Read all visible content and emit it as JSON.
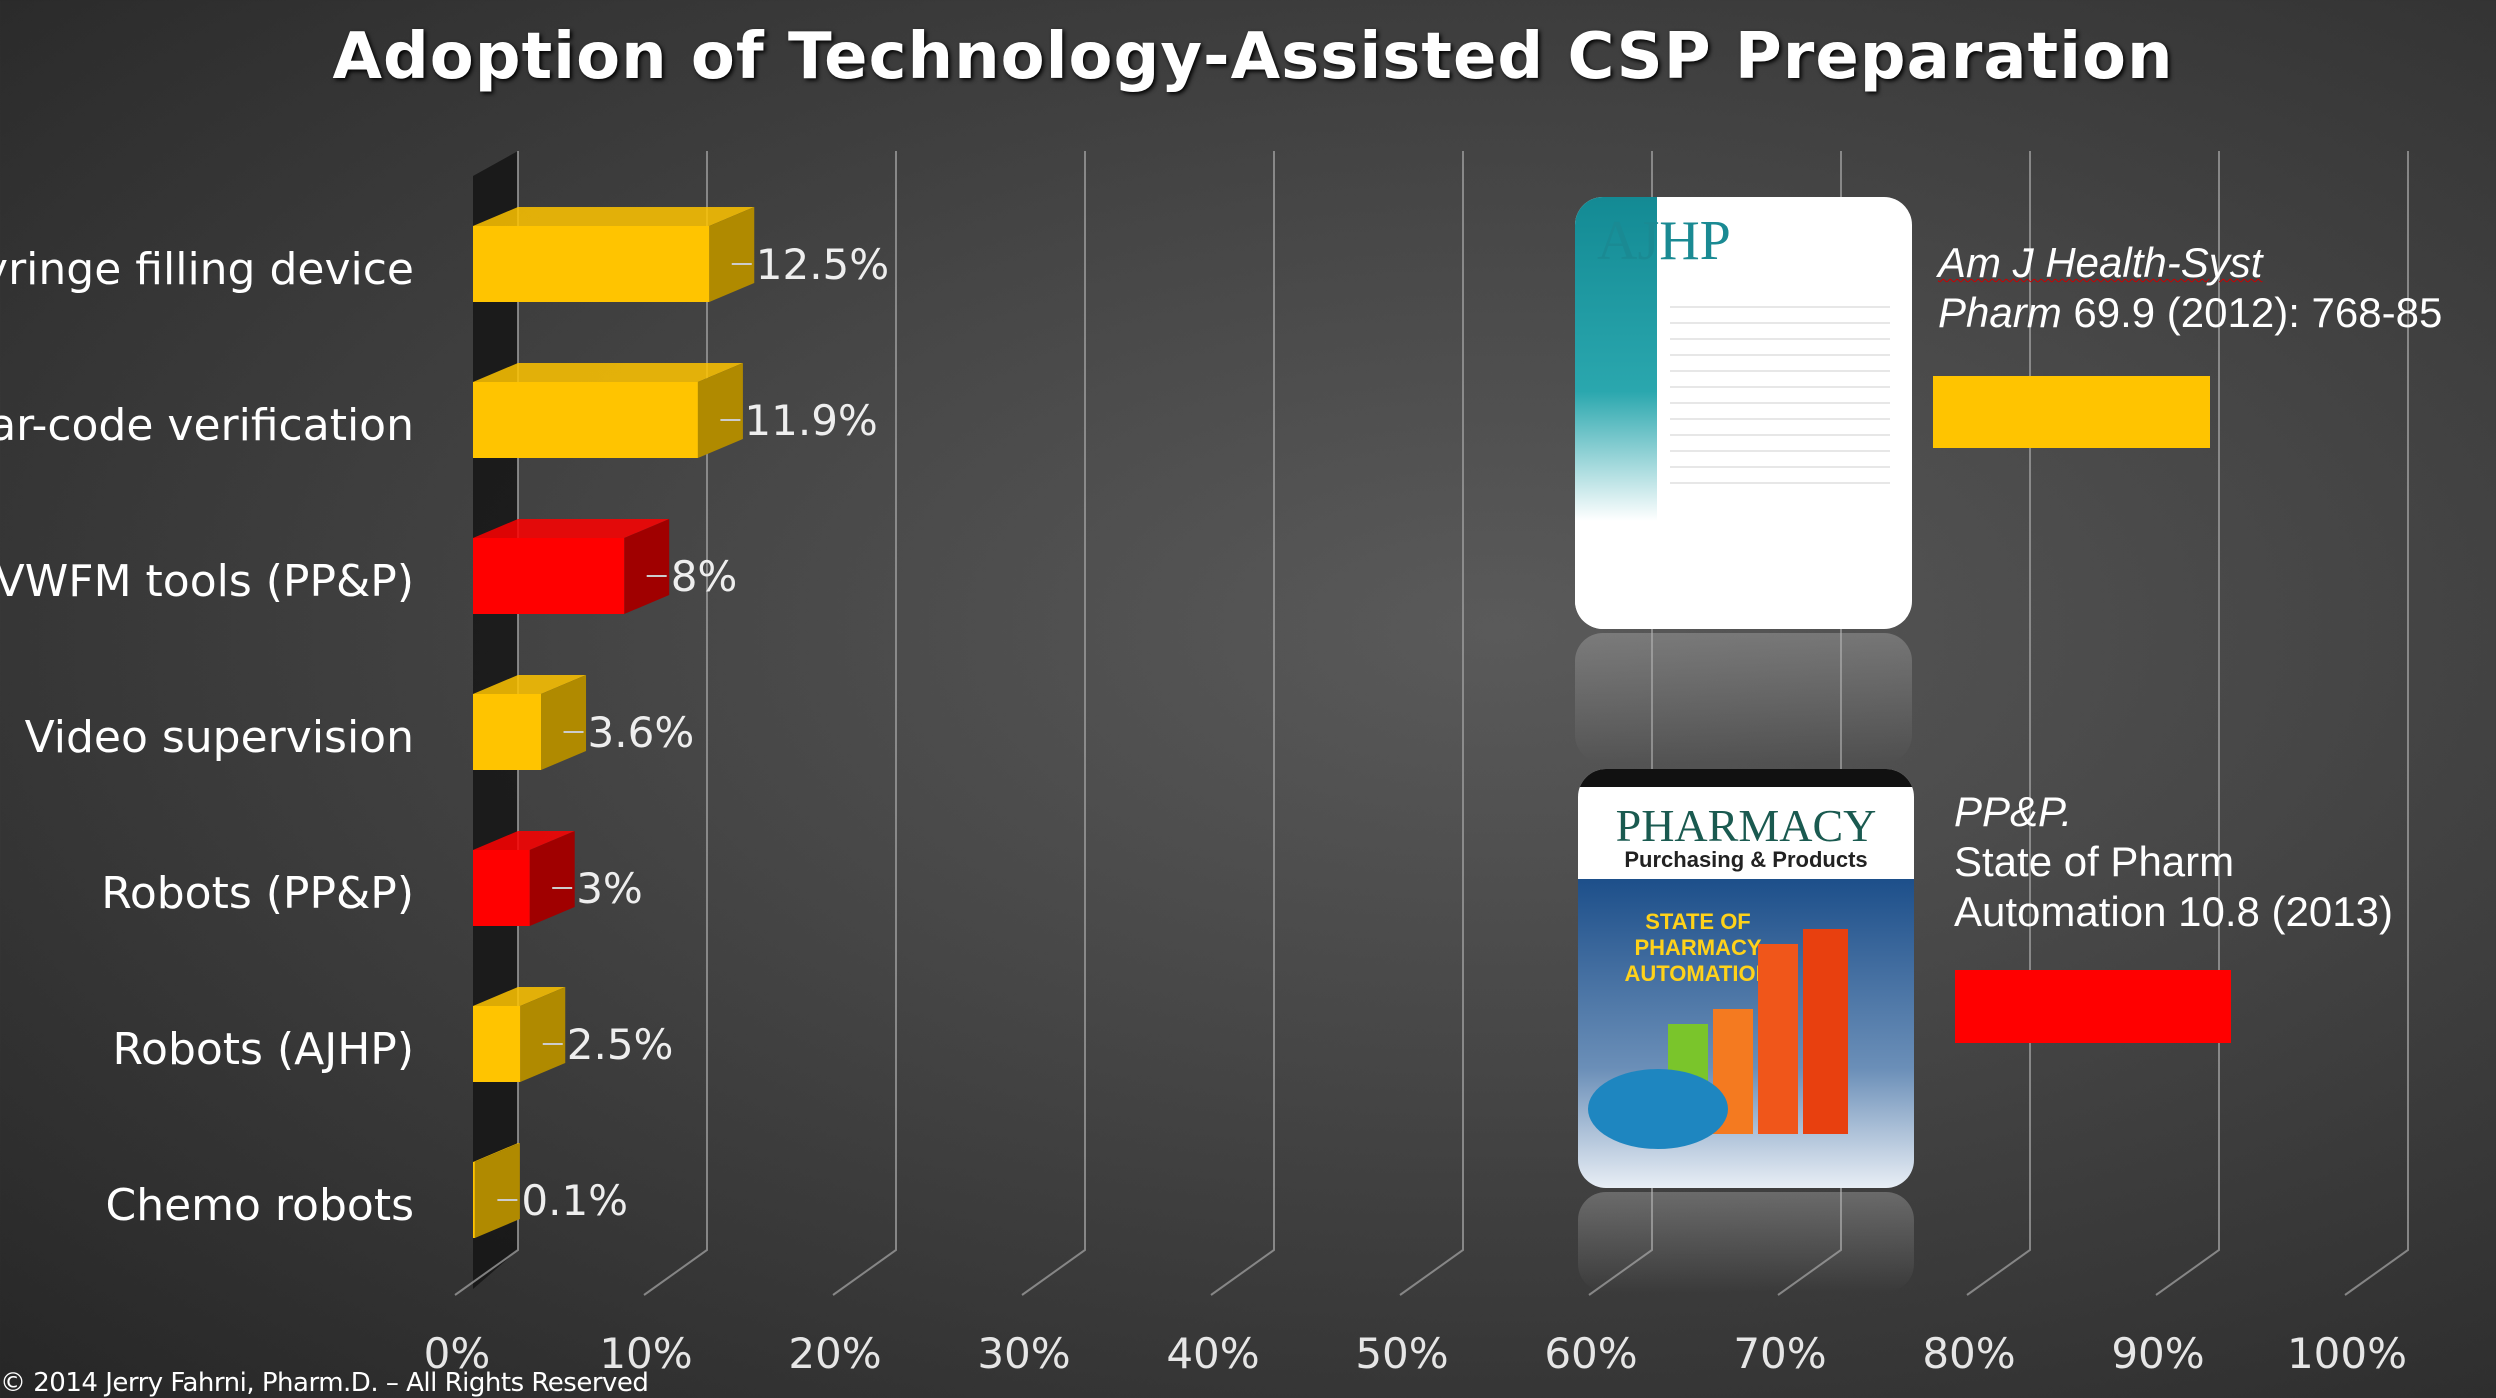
{
  "title": "Adoption of Technology-Assisted CSP Preparation",
  "chart_data": {
    "type": "bar",
    "orientation": "horizontal",
    "style": "3d",
    "title": "Adoption of Technology-Assisted CSP Preparation",
    "categories": [
      "Syringe filling device",
      "Bar-code verification",
      "IVWFM tools (PP&P)",
      "Video supervision",
      "Robots (PP&P)",
      "Robots (AJHP)",
      "Chemo robots"
    ],
    "values": [
      12.5,
      11.9,
      8,
      3.6,
      3,
      2.5,
      0.1
    ],
    "data_labels": [
      "12.5%",
      "11.9%",
      "8%",
      "3.6%",
      "3%",
      "2.5%",
      "0.1%"
    ],
    "sources": [
      "AJHP",
      "AJHP",
      "PP&P",
      "AJHP",
      "PP&P",
      "AJHP",
      "AJHP"
    ],
    "xlim": [
      0,
      100
    ],
    "x_ticks": [
      "0%",
      "10%",
      "20%",
      "30%",
      "40%",
      "50%",
      "60%",
      "70%",
      "80%",
      "90%",
      "100%"
    ],
    "grid": true,
    "legend_position": "right"
  },
  "colors": {
    "AJHP": "#ffc400",
    "PP&P": "#ff0000",
    "AJHP_side": "#b08a00",
    "PP&P_side": "#a00000"
  },
  "legend": [
    {
      "source": "AJHP",
      "italic": "Am J Health-Syst",
      "italic2": "Pharm",
      "rest": " 69.9 (2012): 768-85",
      "cover_title": "AJHP"
    },
    {
      "source": "PP&P",
      "italic": "PP&P.",
      "line2": "State of Pharm",
      "line3": "Automation 10.8 (2013)",
      "cover_title": "PHARMACY",
      "cover_sub": "Purchasing & Products",
      "cover_headline": "STATE OF PHARMACY AUTOMATION"
    }
  ],
  "footer": "© 2014 Jerry Fahrni, Pharm.D. – All Rights Reserved"
}
